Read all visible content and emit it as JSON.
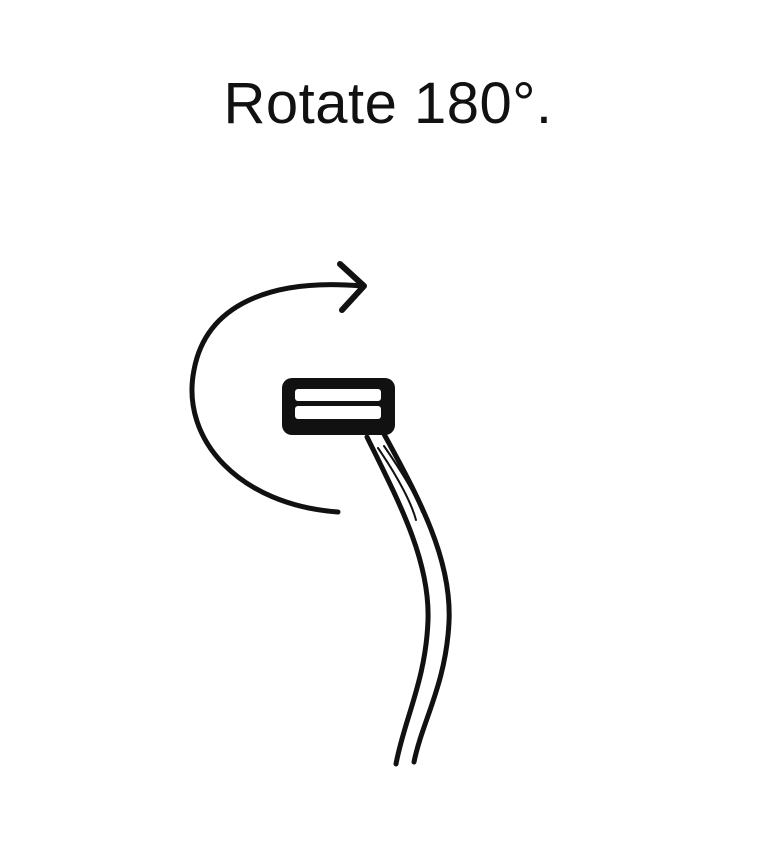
{
  "instruction": {
    "text": "Rotate 180°."
  },
  "illustration": {
    "rotation_degrees": 180,
    "rotation_direction": "clockwise",
    "stroke_color": "#111111",
    "background_color": "#ffffff",
    "icons": [
      "rotation-arrow-icon",
      "connector-plug-icon",
      "cable-icon"
    ]
  }
}
